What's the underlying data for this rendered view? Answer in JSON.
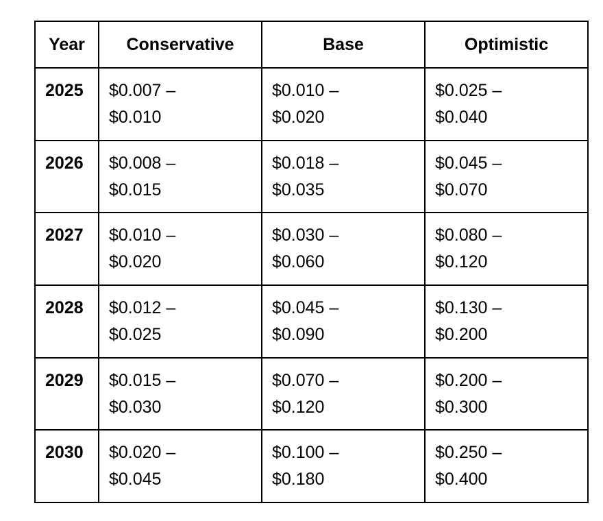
{
  "table": {
    "headers": [
      "Year",
      "Conservative",
      "Base",
      "Optimistic"
    ],
    "rows": [
      {
        "year": "2025",
        "cells": [
          [
            "$0.007 –",
            "$0.010"
          ],
          [
            "$0.010 –",
            "$0.020"
          ],
          [
            "$0.025 –",
            "$0.040"
          ]
        ]
      },
      {
        "year": "2026",
        "cells": [
          [
            "$0.008 –",
            "$0.015"
          ],
          [
            "$0.018 –",
            "$0.035"
          ],
          [
            "$0.045 –",
            "$0.070"
          ]
        ]
      },
      {
        "year": "2027",
        "cells": [
          [
            "$0.010 –",
            "$0.020"
          ],
          [
            "$0.030 –",
            "$0.060"
          ],
          [
            "$0.080 –",
            "$0.120"
          ]
        ]
      },
      {
        "year": "2028",
        "cells": [
          [
            "$0.012 –",
            "$0.025"
          ],
          [
            "$0.045 –",
            "$0.090"
          ],
          [
            "$0.130 –",
            "$0.200"
          ]
        ]
      },
      {
        "year": "2029",
        "cells": [
          [
            "$0.015 –",
            "$0.030"
          ],
          [
            "$0.070 –",
            "$0.120"
          ],
          [
            "$0.200 –",
            "$0.300"
          ]
        ]
      },
      {
        "year": "2030",
        "cells": [
          [
            "$0.020 –",
            "$0.045"
          ],
          [
            "$0.100 –",
            "$0.180"
          ],
          [
            "$0.250 –",
            "$0.400"
          ]
        ]
      }
    ]
  }
}
